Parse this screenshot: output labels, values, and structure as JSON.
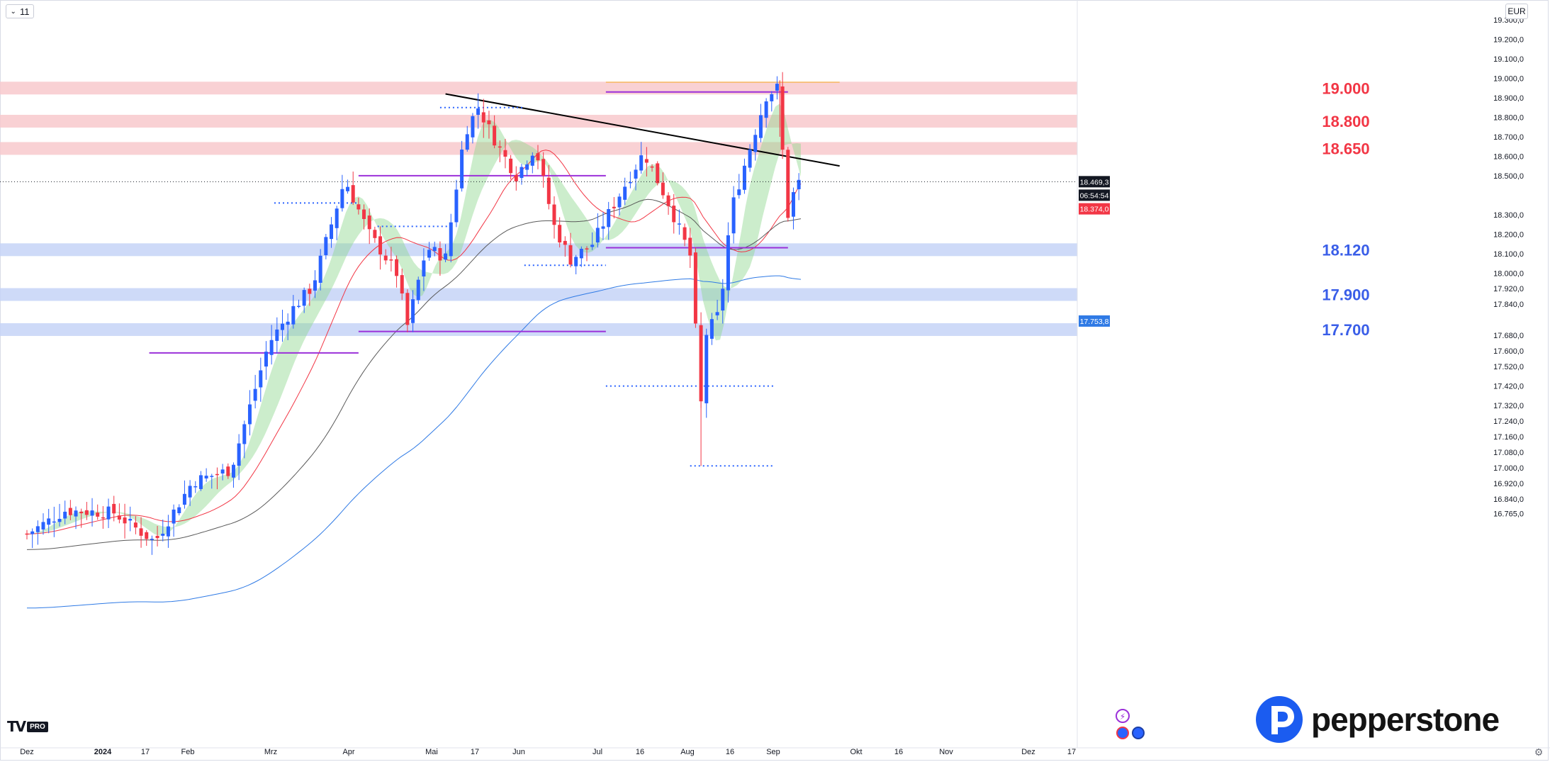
{
  "toolbar": {
    "interval": "11",
    "currency": "EUR"
  },
  "branding": {
    "tradingview_mark": "TV",
    "tradingview_badge": "PRO",
    "broker": "pepperstone"
  },
  "icons": {
    "chevron": "chevron-down-icon",
    "settings": "gear-icon",
    "alert": "lightning-alert-icon",
    "events": "economic-events-icon"
  },
  "colors": {
    "bull": "#2962ff",
    "bear": "#f23645",
    "resistance_zone": "#f8c9cd",
    "support_zone": "#c5d3f7",
    "resistance_text": "#f23645",
    "support_text": "#3a5ee8",
    "trendline": "#000000",
    "ema_fast": "#f23645",
    "sma_black": "#5a5a5a",
    "ma_blue": "#2f7ae5",
    "purple": "#9b30d9",
    "cloud_bull": "#8fd88f",
    "cloud_bear": "#c48b8b"
  },
  "chart_data": {
    "type": "candlestick",
    "symbol_currency": "EUR",
    "x_axis_labels": [
      "Dez",
      "2024",
      "17",
      "Feb",
      "Mrz",
      "Apr",
      "Mai",
      "17",
      "Jun",
      "Jul",
      "16",
      "Aug",
      "16",
      "Sep",
      "Okt",
      "16",
      "Nov",
      "Dez",
      "17"
    ],
    "y_axis_labels": [
      "19.300,0",
      "19.200,0",
      "19.100,0",
      "19.000,0",
      "18.900,0",
      "18.800,0",
      "18.700,0",
      "18.600,0",
      "18.500,0",
      "18.300,0",
      "18.200,0",
      "18.100,0",
      "18.000,0",
      "17.920,0",
      "17.840,0",
      "17.680,0",
      "17.600,0",
      "17.520,0",
      "17.420,0",
      "17.320,0",
      "17.240,0",
      "17.160,0",
      "17.080,0",
      "17.000,0",
      "16.920,0",
      "16.840,0",
      "16.765,0"
    ],
    "ylim": [
      16740,
      19340
    ],
    "price_labels": {
      "last": "18.469,3",
      "countdown": "06:54:54",
      "ema": "18.374,0",
      "ma": "17.753,8"
    },
    "zones": [
      {
        "label": "19.000",
        "kind": "resistance",
        "value": 18950
      },
      {
        "label": "18.800",
        "kind": "resistance",
        "value": 18780
      },
      {
        "label": "18.650",
        "kind": "resistance",
        "value": 18640
      },
      {
        "label": "18.120",
        "kind": "support",
        "value": 18120
      },
      {
        "label": "17.900",
        "kind": "support",
        "value": 17890
      },
      {
        "label": "17.700",
        "kind": "support",
        "value": 17710
      }
    ],
    "trendline": [
      [
        "May 3",
        18920
      ],
      [
        "Sep 25",
        18550
      ]
    ],
    "close_path": [
      [
        "Dec 1",
        16660
      ],
      [
        "Dec 15",
        16780
      ],
      [
        "Jan 2",
        16770
      ],
      [
        "Jan 17",
        16620
      ],
      [
        "Jan 31",
        16930
      ],
      [
        "Feb 14",
        16990
      ],
      [
        "Feb 28",
        17640
      ],
      [
        "Mar 8",
        17820
      ],
      [
        "Mar 15",
        17930
      ],
      [
        "Mar 27",
        18480
      ],
      [
        "Apr 5",
        18200
      ],
      [
        "Apr 15",
        18000
      ],
      [
        "Apr 19",
        17730
      ],
      [
        "Apr 26",
        18130
      ],
      [
        "May 3",
        18080
      ],
      [
        "May 10",
        18720
      ],
      [
        "May 15",
        18850
      ],
      [
        "May 22",
        18660
      ],
      [
        "May 29",
        18500
      ],
      [
        "Jun 5",
        18650
      ],
      [
        "Jun 12",
        18240
      ],
      [
        "Jun 18",
        18070
      ],
      [
        "Jun 26",
        18150
      ],
      [
        "Jul 3",
        18330
      ],
      [
        "Jul 10",
        18500
      ],
      [
        "Jul 15",
        18620
      ],
      [
        "Jul 24",
        18360
      ],
      [
        "Aug 1",
        18090
      ],
      [
        "Aug 5",
        17330
      ],
      [
        "Aug 7",
        17690
      ],
      [
        "Aug 12",
        17800
      ],
      [
        "Aug 16",
        18320
      ],
      [
        "Aug 22",
        18600
      ],
      [
        "Aug 29",
        18910
      ],
      [
        "Sep 2",
        18950
      ],
      [
        "Sep 6",
        18300
      ],
      [
        "Sep 9",
        18460
      ],
      [
        "Sep 11",
        18469
      ]
    ],
    "extremes": {
      "high": [
        "Sep 3",
        18990
      ],
      "low": [
        "Aug 5",
        17010
      ]
    }
  }
}
